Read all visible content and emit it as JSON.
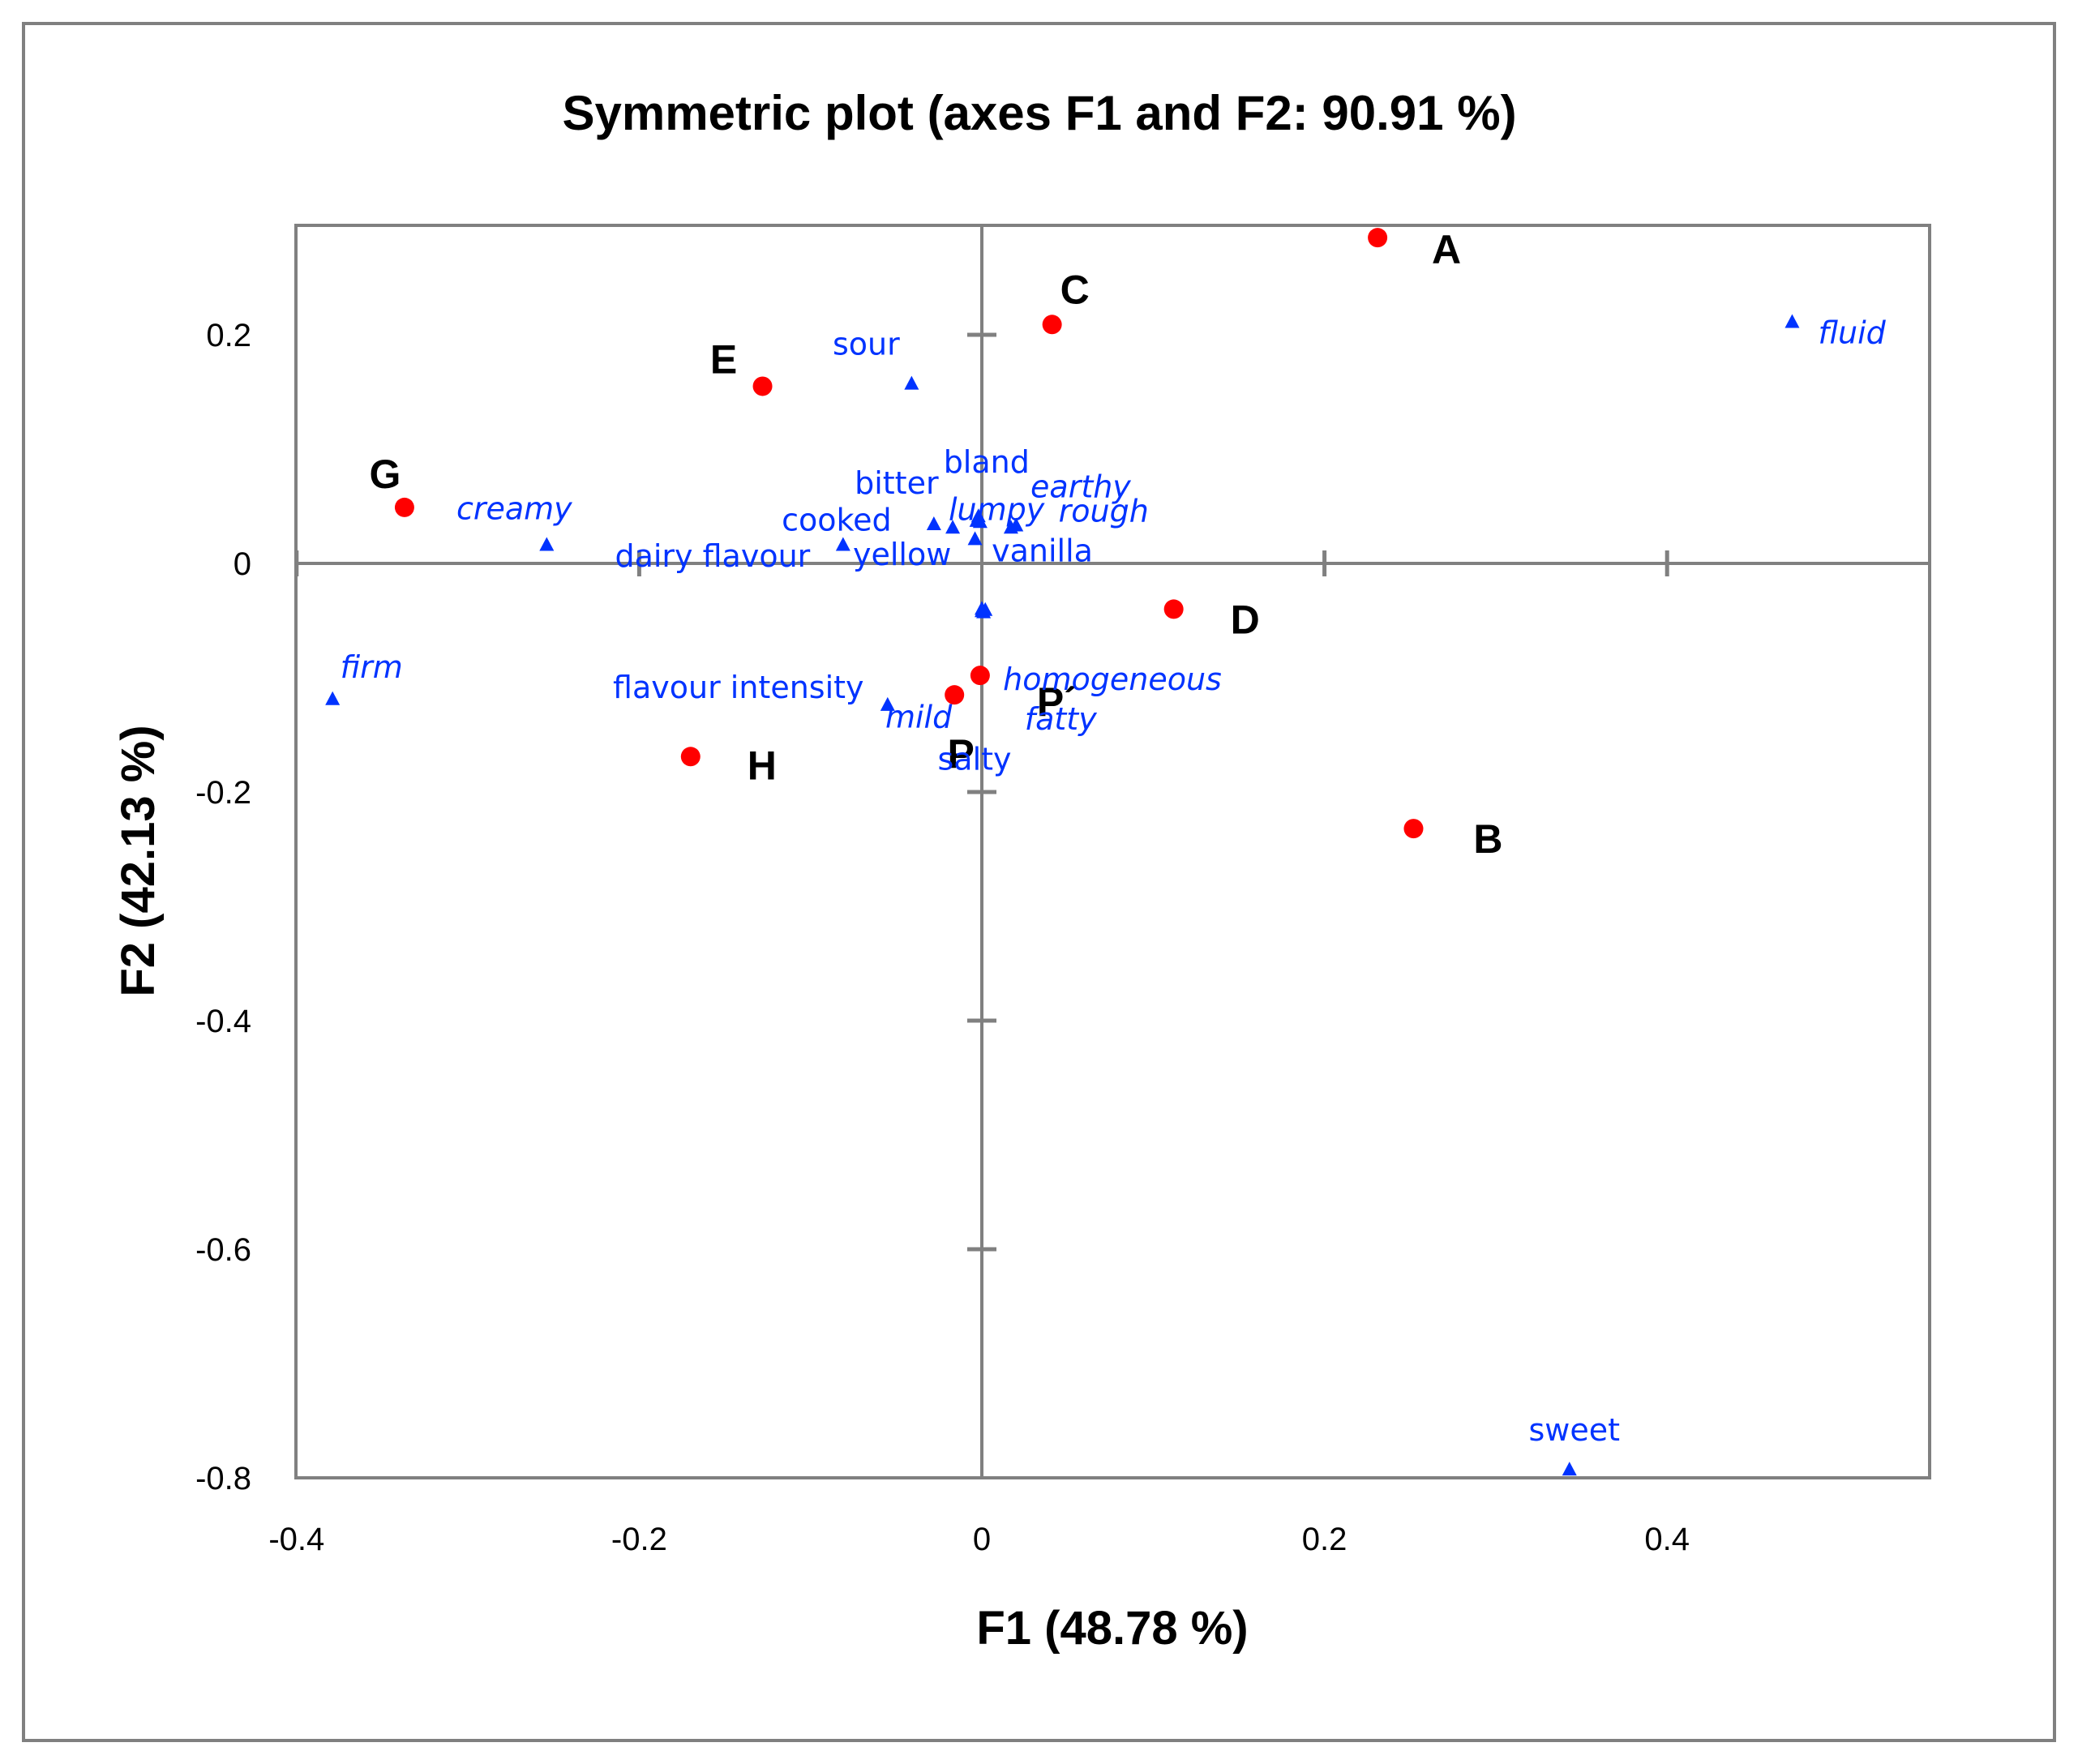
{
  "colors": {
    "product": "#ff0000",
    "attribute": "#0033ff",
    "axis": "#808080",
    "frame": "#808080"
  },
  "chart_data": {
    "type": "scatter",
    "title": "Symmetric plot  (axes F1 and F2: 90.91 %)",
    "xlabel": "F1 (48.78 %)",
    "ylabel": "F2 (42.13 %)",
    "xlim": [
      -0.4,
      0.55
    ],
    "ylim": [
      -0.8,
      0.3
    ],
    "xticks": [
      -0.4,
      -0.2,
      0,
      0.2,
      0.4
    ],
    "xtick_labels": [
      "-0.4",
      "-0.2",
      "0",
      "0.2",
      "0.4"
    ],
    "yticks": [
      0.2,
      0,
      -0.2,
      -0.4,
      -0.6,
      -0.8
    ],
    "ytick_labels": [
      "0.2",
      "0",
      "-0.2",
      "-0.4",
      "-0.6",
      "-0.8"
    ],
    "grid": false,
    "series": [
      {
        "name": "Products",
        "marker": "circle",
        "points": [
          {
            "label": "A",
            "x": 0.231,
            "y": 0.285
          },
          {
            "label": "B",
            "x": 0.252,
            "y": -0.232
          },
          {
            "label": "C",
            "x": 0.041,
            "y": 0.209
          },
          {
            "label": "D",
            "x": 0.112,
            "y": -0.04
          },
          {
            "label": "E",
            "x": -0.128,
            "y": 0.155
          },
          {
            "label": "G",
            "x": -0.337,
            "y": 0.049
          },
          {
            "label": "H",
            "x": -0.17,
            "y": -0.169
          },
          {
            "label": "P",
            "x": -0.016,
            "y": -0.115
          },
          {
            "label": "P´",
            "x": -0.001,
            "y": -0.098
          }
        ]
      },
      {
        "name": "Attributes",
        "marker": "triangle",
        "points": [
          {
            "label": "sour",
            "x": -0.041,
            "y": 0.157,
            "italic": false
          },
          {
            "label": "fluid",
            "x": 0.473,
            "y": 0.211,
            "italic": true
          },
          {
            "label": "creamy",
            "x": -0.254,
            "y": 0.016,
            "italic": true
          },
          {
            "label": "bitter",
            "x": -0.028,
            "y": 0.034,
            "italic": false
          },
          {
            "label": "bland",
            "x": -0.002,
            "y": 0.041,
            "italic": false
          },
          {
            "label": "earthy",
            "x": 0.017,
            "y": 0.031,
            "italic": true
          },
          {
            "label": "lumpy",
            "x": -0.017,
            "y": 0.031,
            "italic": true
          },
          {
            "label": "rough",
            "x": 0.02,
            "y": 0.033,
            "italic": true
          },
          {
            "label": "vanilla",
            "x": -0.004,
            "y": 0.021,
            "italic": false
          },
          {
            "label": "cooked",
            "x": -0.081,
            "y": 0.016,
            "italic": false
          },
          {
            "label": "dairy flavour",
            "x": -0.001,
            "y": 0.036,
            "italic": false
          },
          {
            "label": "yellow",
            "x": -0.003,
            "y": 0.037,
            "italic": false
          },
          {
            "label": "homogeneous",
            "x": 0.0,
            "y": -0.042,
            "italic": true
          },
          {
            "label": "mild",
            "x": 0.001,
            "y": -0.043,
            "italic": true
          },
          {
            "label": "fatty",
            "x": 0.002,
            "y": -0.041,
            "italic": true
          },
          {
            "label": "salty",
            "x": 0.0,
            "y": -0.04,
            "italic": false
          },
          {
            "label": "firm",
            "x": -0.379,
            "y": -0.119,
            "italic": true
          },
          {
            "label": "flavour intensity",
            "x": -0.055,
            "y": -0.124,
            "italic": false
          },
          {
            "label": "sweet",
            "x": 0.343,
            "y": -0.793,
            "italic": false
          }
        ]
      }
    ]
  }
}
